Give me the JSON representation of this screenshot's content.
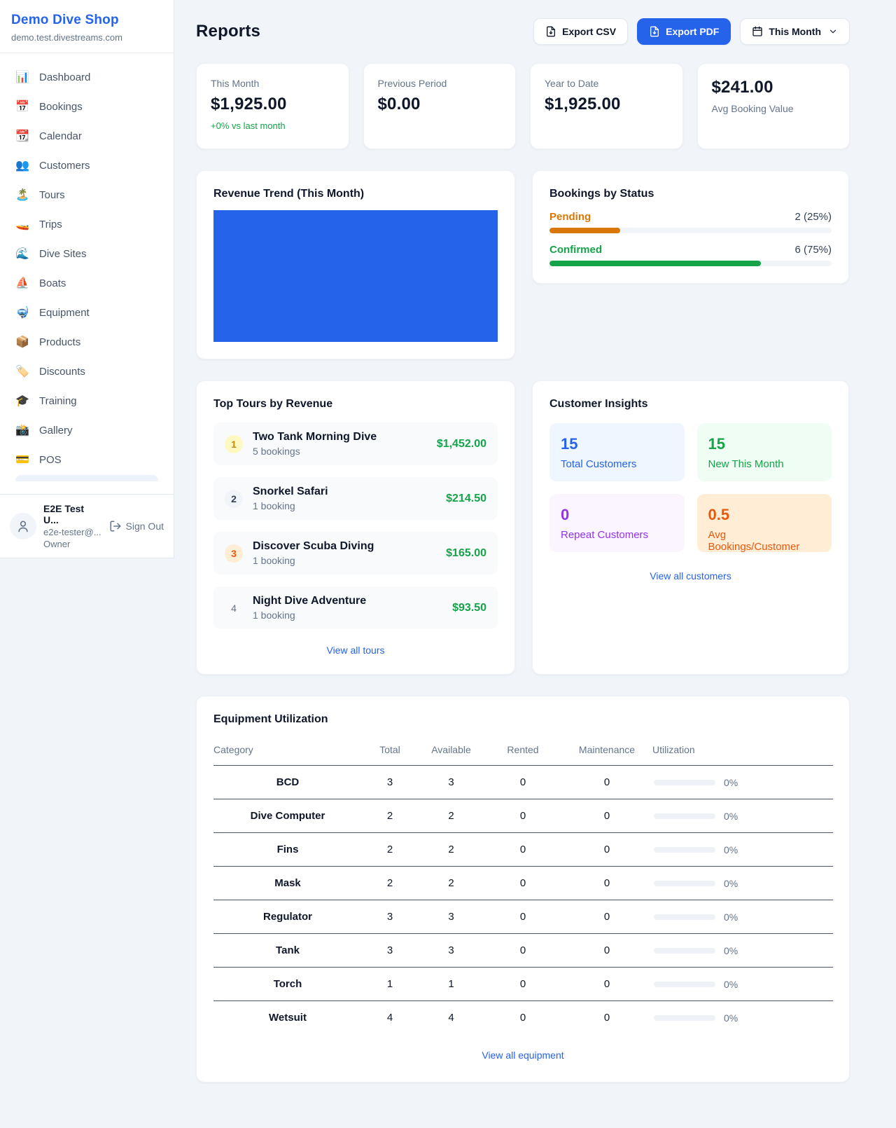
{
  "sidebar": {
    "shop_name": "Demo Dive Shop",
    "shop_domain": "demo.test.divestreams.com",
    "items": [
      {
        "label": "Dashboard",
        "icon": "📊"
      },
      {
        "label": "Bookings",
        "icon": "📅"
      },
      {
        "label": "Calendar",
        "icon": "📆"
      },
      {
        "label": "Customers",
        "icon": "👥"
      },
      {
        "label": "Tours",
        "icon": "🏝️"
      },
      {
        "label": "Trips",
        "icon": "🚤"
      },
      {
        "label": "Dive Sites",
        "icon": "🌊"
      },
      {
        "label": "Boats",
        "icon": "⛵"
      },
      {
        "label": "Equipment",
        "icon": "🤿"
      },
      {
        "label": "Products",
        "icon": "📦"
      },
      {
        "label": "Discounts",
        "icon": "🏷️"
      },
      {
        "label": "Training",
        "icon": "🎓"
      },
      {
        "label": "Gallery",
        "icon": "📸"
      },
      {
        "label": "POS",
        "icon": "💳"
      }
    ],
    "user": {
      "name": "E2E Test U...",
      "email": "e2e-tester@...",
      "role": "Owner",
      "sign_out_label": "Sign Out"
    }
  },
  "header": {
    "title": "Reports",
    "export_csv_label": "Export CSV",
    "export_pdf_label": "Export PDF",
    "period_label": "This Month"
  },
  "stats": [
    {
      "label": "This Month",
      "value": "$1,925.00",
      "delta": "+0% vs last month"
    },
    {
      "label": "Previous Period",
      "value": "$0.00"
    },
    {
      "label": "Year to Date",
      "value": "$1,925.00"
    },
    {
      "label": "Avg Booking Value",
      "value": "$241.00"
    }
  ],
  "revenue_trend": {
    "title": "Revenue Trend (This Month)"
  },
  "chart_data": {
    "type": "bar",
    "title": "Revenue Trend (This Month)",
    "categories": [
      "This Month"
    ],
    "values": [
      1925
    ],
    "bar_color": "#2563eb",
    "note": "chart renders as a single solid blue block filling the plot area; no axes or labels visible"
  },
  "bookings_by_status": {
    "title": "Bookings by Status",
    "rows": [
      {
        "label": "Pending",
        "count_text": "2 (25%)",
        "percent": 25,
        "color": "#d97706"
      },
      {
        "label": "Confirmed",
        "count_text": "6 (75%)",
        "percent": 75,
        "color": "#16a34a"
      }
    ]
  },
  "top_tours": {
    "title": "Top Tours by Revenue",
    "view_all_label": "View all tours",
    "items": [
      {
        "rank": "1",
        "name": "Two Tank Morning Dive",
        "bookings": "5 bookings",
        "revenue": "$1,452.00"
      },
      {
        "rank": "2",
        "name": "Snorkel Safari",
        "bookings": "1 booking",
        "revenue": "$214.50"
      },
      {
        "rank": "3",
        "name": "Discover Scuba Diving",
        "bookings": "1 booking",
        "revenue": "$165.00"
      },
      {
        "rank": "4",
        "name": "Night Dive Adventure",
        "bookings": "1 booking",
        "revenue": "$93.50"
      }
    ]
  },
  "customer_insights": {
    "title": "Customer Insights",
    "view_all_label": "View all customers",
    "tiles": [
      {
        "value": "15",
        "label": "Total Customers",
        "color": "#2563eb",
        "bg": "#eff6ff"
      },
      {
        "value": "15",
        "label": "New This Month",
        "color": "#16a34a",
        "bg": "#f0fdf4"
      },
      {
        "value": "0",
        "label": "Repeat Customers",
        "color": "#9333ea",
        "bg": "#faf5ff"
      },
      {
        "value": "0.5",
        "label": "Avg Bookings/Customer",
        "color": "#ea580c",
        "bg": "#ffedd5"
      }
    ]
  },
  "equipment": {
    "title": "Equipment Utilization",
    "view_all_label": "View all equipment",
    "columns": [
      "Category",
      "Total",
      "Available",
      "Rented",
      "Maintenance",
      "Utilization"
    ],
    "rows": [
      {
        "category": "BCD",
        "total": "3",
        "available": "3",
        "rented": "0",
        "maintenance": "0",
        "utilization": "0%"
      },
      {
        "category": "Dive Computer",
        "total": "2",
        "available": "2",
        "rented": "0",
        "maintenance": "0",
        "utilization": "0%"
      },
      {
        "category": "Fins",
        "total": "2",
        "available": "2",
        "rented": "0",
        "maintenance": "0",
        "utilization": "0%"
      },
      {
        "category": "Mask",
        "total": "2",
        "available": "2",
        "rented": "0",
        "maintenance": "0",
        "utilization": "0%"
      },
      {
        "category": "Regulator",
        "total": "3",
        "available": "3",
        "rented": "0",
        "maintenance": "0",
        "utilization": "0%"
      },
      {
        "category": "Tank",
        "total": "3",
        "available": "3",
        "rented": "0",
        "maintenance": "0",
        "utilization": "0%"
      },
      {
        "category": "Torch",
        "total": "1",
        "available": "1",
        "rented": "0",
        "maintenance": "0",
        "utilization": "0%"
      },
      {
        "category": "Wetsuit",
        "total": "4",
        "available": "4",
        "rented": "0",
        "maintenance": "0",
        "utilization": "0%"
      }
    ]
  },
  "colors": {
    "accent_blue": "#2563eb",
    "green": "#16a34a",
    "amber": "#d97706",
    "orange": "#ea580c",
    "purple": "#9333ea",
    "page_bg": "#f1f5f9"
  }
}
